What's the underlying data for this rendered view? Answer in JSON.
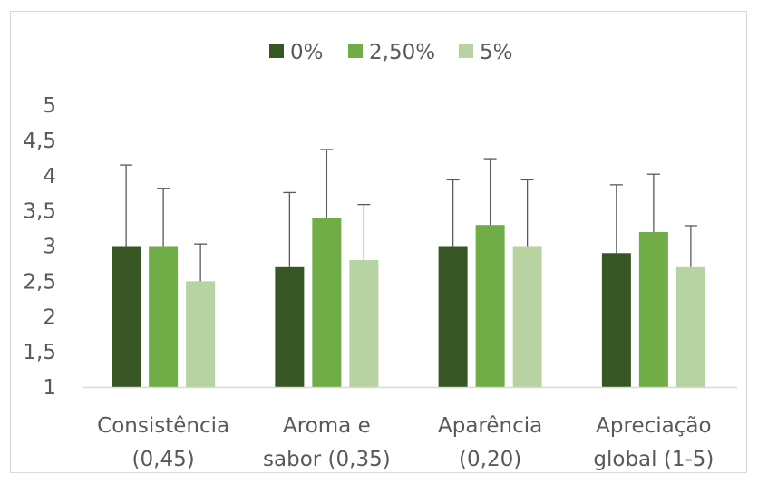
{
  "chart_data": {
    "type": "bar",
    "title": "",
    "xlabel": "",
    "ylabel": "",
    "ylim": [
      1,
      5
    ],
    "yticks": [
      "1",
      "1,5",
      "2",
      "2,5",
      "3",
      "3,5",
      "4",
      "4,5",
      "5"
    ],
    "ytick_values": [
      1,
      1.5,
      2,
      2.5,
      3,
      3.5,
      4,
      4.5,
      5
    ],
    "grid": false,
    "legend_position": "top",
    "categories": [
      [
        "Consistência",
        "(0,45)"
      ],
      [
        "Aroma e",
        "sabor (0,35)"
      ],
      [
        "Aparência",
        "(0,20)"
      ],
      [
        "Apreciação",
        "global (1-5)"
      ]
    ],
    "series": [
      {
        "name": "0%",
        "color": "#375623",
        "values": [
          3.0,
          2.7,
          3.0,
          2.9
        ],
        "error_upper": [
          4.15,
          3.76,
          3.94,
          3.87
        ]
      },
      {
        "name": "2,50%",
        "color": "#70ad47",
        "values": [
          3.0,
          3.4,
          3.3,
          3.2
        ],
        "error_upper": [
          3.82,
          4.37,
          4.24,
          4.02
        ]
      },
      {
        "name": "5%",
        "color": "#b6d3a1",
        "values": [
          2.5,
          2.8,
          3.0,
          2.7
        ],
        "error_upper": [
          3.03,
          3.59,
          3.94,
          3.29
        ]
      }
    ]
  }
}
